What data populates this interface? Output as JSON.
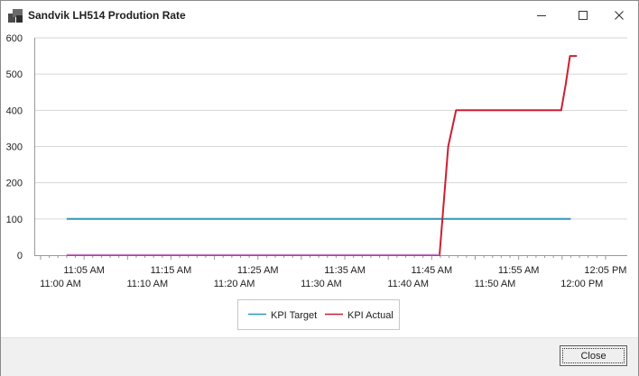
{
  "window": {
    "title": "Sandvik LH514 Prodution Rate",
    "icon": "app-window-icon",
    "controls": {
      "minimize": "minimize-icon",
      "maximize": "maximize-icon",
      "close": "close-icon"
    }
  },
  "footer": {
    "close_label": "Close"
  },
  "colors": {
    "target": "#2b9bb5",
    "actual": "#cc1f33",
    "zero": "#c77bc2",
    "grid": "#d6d6d6",
    "axis": "#9a9a9a"
  },
  "chart_data": {
    "type": "line",
    "title": "",
    "xlabel": "",
    "ylabel": "",
    "ylim": [
      0,
      600
    ],
    "yticks": [
      "0",
      "100",
      "200",
      "300",
      "400",
      "500",
      "600"
    ],
    "xlim_minutes": [
      0,
      65
    ],
    "xticks_top": [
      {
        "t": 5,
        "label": "11:05 AM"
      },
      {
        "t": 15,
        "label": "11:15 AM"
      },
      {
        "t": 25,
        "label": "11:25 AM"
      },
      {
        "t": 35,
        "label": "11:35 AM"
      },
      {
        "t": 45,
        "label": "11:45 AM"
      },
      {
        "t": 55,
        "label": "11:55 AM"
      },
      {
        "t": 65,
        "label": "12:05 PM"
      }
    ],
    "xticks_bottom": [
      {
        "t": 0,
        "label": "11:00 AM"
      },
      {
        "t": 10,
        "label": "11:10 AM"
      },
      {
        "t": 20,
        "label": "11:20 AM"
      },
      {
        "t": 30,
        "label": "11:30 AM"
      },
      {
        "t": 40,
        "label": "11:40 AM"
      },
      {
        "t": 50,
        "label": "11:50 AM"
      },
      {
        "t": 60,
        "label": "12:00 PM"
      }
    ],
    "grid": true,
    "legend_position": "bottom-center",
    "series": [
      {
        "name": "KPI Target",
        "color": "#2b9bb5",
        "points": [
          [
            3,
            100
          ],
          [
            61,
            100
          ]
        ]
      },
      {
        "name": "KPI Actual",
        "color": "#cc1f33",
        "points": [
          [
            3,
            0
          ],
          [
            45.9,
            0
          ],
          [
            46.9,
            300
          ],
          [
            47.8,
            400
          ],
          [
            59.9,
            400
          ],
          [
            60.4,
            470
          ],
          [
            60.9,
            550
          ],
          [
            61.7,
            550
          ]
        ]
      }
    ]
  }
}
